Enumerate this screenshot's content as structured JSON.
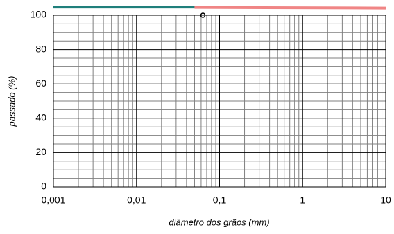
{
  "chart_data": {
    "type": "line",
    "xlabel": "diâmetro dos grãos  (mm)",
    "ylabel": "passado  (%)",
    "xscale": "log",
    "xlim": [
      0.001,
      10
    ],
    "ylim": [
      0,
      100
    ],
    "xticks": [
      {
        "value": 0.001,
        "label": "0,001"
      },
      {
        "value": 0.01,
        "label": "0,01"
      },
      {
        "value": 0.1,
        "label": "0,1"
      },
      1,
      10
    ],
    "yticks": [
      0,
      20,
      40,
      60,
      80,
      100
    ],
    "grid": true,
    "minor_grid": true,
    "series": [
      {
        "color": "#1f7f7b",
        "x": [
          0.001,
          0.05
        ],
        "values": [
          104.8,
          104.8
        ]
      },
      {
        "color": "#f08585",
        "x": [
          0.05,
          10
        ],
        "values": [
          104.6,
          104.2
        ]
      },
      {
        "color": "#000000",
        "marker": "circle",
        "x": [
          0.063
        ],
        "values": [
          100
        ]
      }
    ]
  }
}
